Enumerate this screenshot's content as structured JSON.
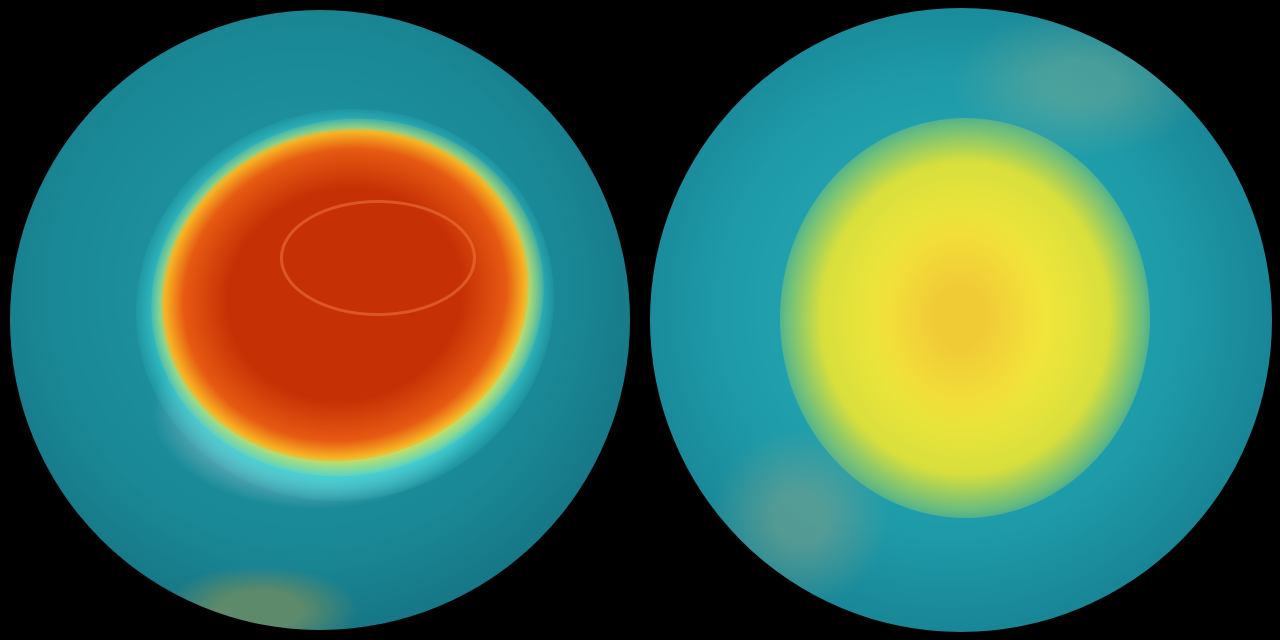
{
  "image": {
    "left_globe": {
      "subject": "south-pole-ozone-hole",
      "colors": {
        "hole": "#c63005",
        "rim": "#f0e040",
        "edge": "#3fd6d8",
        "background": "#1a8896"
      }
    },
    "right_globe": {
      "subject": "north-pole-ozone",
      "colors": {
        "center": "#f2e63a",
        "background": "#1e9aa8"
      }
    },
    "background": "#000000"
  }
}
